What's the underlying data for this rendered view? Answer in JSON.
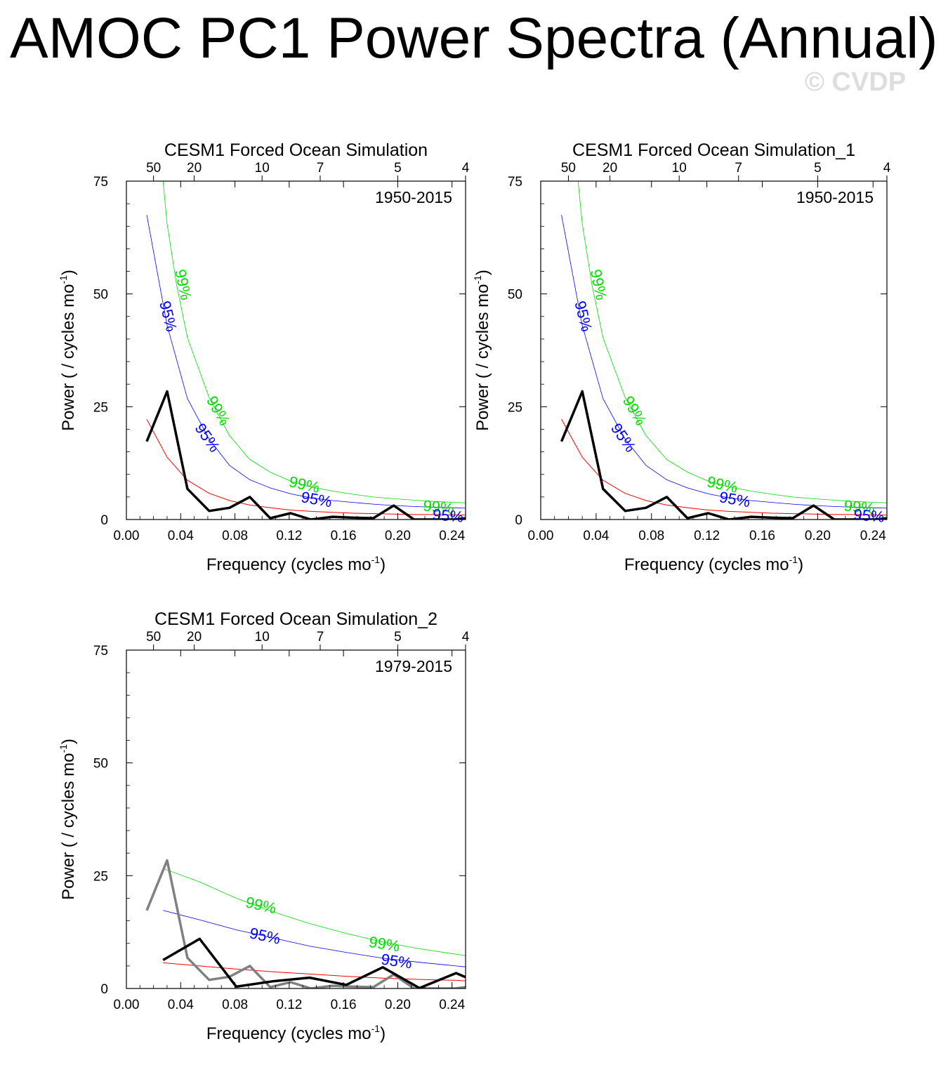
{
  "title": "AMOC PC1 Power Spectra (Annual)",
  "watermark": "© CVDP",
  "colors": {
    "curve": "#000000",
    "reference": "#808080",
    "red_noise": "#ff0000",
    "conf95": "#0000ff",
    "conf99": "#00dd00"
  },
  "chart_data": [
    {
      "type": "line",
      "title": "CESM1 Forced Ocean Simulation",
      "period_label": "1950-2015",
      "xlabel": "Frequency (cycles mo",
      "xlabel_sup": "-1",
      "xlabel_end": ")",
      "ylabel": "Power ( / cycles mo",
      "ylabel_sup": "-1",
      "ylabel_end": ")",
      "xlim": [
        0,
        0.25
      ],
      "ylim": [
        0,
        75
      ],
      "xticks": [
        0.0,
        0.04,
        0.08,
        0.12,
        0.16,
        0.2,
        0.24
      ],
      "xtick_labels": [
        "0.00",
        "0.04",
        "0.08",
        "0.12",
        "0.16",
        "0.20",
        "0.24"
      ],
      "yticks": [
        0,
        25,
        50,
        75
      ],
      "ytick_labels": [
        "0",
        "25",
        "50",
        "75"
      ],
      "top_axis": {
        "periods": [
          50,
          20,
          10,
          7,
          5,
          4
        ],
        "labels": [
          "50",
          "20",
          "10",
          "7",
          "5",
          "4"
        ]
      },
      "series": [
        {
          "role": "red_noise",
          "x": [
            0.015,
            0.03,
            0.045,
            0.061,
            0.076,
            0.091,
            0.106,
            0.121,
            0.136,
            0.152,
            0.167,
            0.182,
            0.197,
            0.212,
            0.227,
            0.242,
            0.25
          ],
          "values": [
            22.2,
            13.8,
            8.7,
            5.8,
            4.2,
            3.2,
            2.6,
            2.1,
            1.8,
            1.6,
            1.4,
            1.3,
            1.2,
            1.1,
            1.1,
            1.0,
            1.0
          ]
        },
        {
          "role": "conf95",
          "label": "95%",
          "x": [
            0.015,
            0.03,
            0.045,
            0.061,
            0.076,
            0.091,
            0.106,
            0.121,
            0.136,
            0.152,
            0.167,
            0.182,
            0.197,
            0.212,
            0.227,
            0.242,
            0.25
          ],
          "values": [
            67.5,
            43.0,
            26.8,
            17.8,
            12.0,
            8.8,
            7.0,
            5.7,
            4.8,
            4.2,
            3.8,
            3.4,
            3.1,
            2.9,
            2.7,
            2.6,
            2.5
          ]
        },
        {
          "role": "conf99",
          "label": "99%",
          "x": [
            0.027,
            0.03,
            0.037,
            0.045,
            0.061,
            0.076,
            0.091,
            0.106,
            0.121,
            0.136,
            0.152,
            0.167,
            0.182,
            0.197,
            0.212,
            0.227,
            0.242,
            0.25
          ],
          "values": [
            75,
            65.5,
            52.0,
            40.3,
            27.0,
            18.6,
            13.3,
            10.5,
            8.5,
            7.2,
            6.3,
            5.6,
            5.0,
            4.6,
            4.3,
            4.0,
            3.8,
            3.7
          ]
        },
        {
          "role": "curve",
          "x": [
            0.015,
            0.03,
            0.045,
            0.061,
            0.076,
            0.091,
            0.106,
            0.121,
            0.136,
            0.152,
            0.167,
            0.182,
            0.197,
            0.212,
            0.227,
            0.242,
            0.25
          ],
          "values": [
            17.3,
            28.4,
            6.8,
            1.9,
            2.6,
            5.0,
            0.3,
            1.4,
            0.0,
            0.6,
            0.4,
            0.3,
            3.1,
            0.0,
            0.0,
            0.0,
            0.3
          ]
        }
      ],
      "confidence_labels": [
        {
          "text": "99%",
          "role": "conf99",
          "x": 0.041,
          "y": 52,
          "angle": 78
        },
        {
          "text": "95%",
          "role": "conf95",
          "x": 0.03,
          "y": 45,
          "angle": 76
        },
        {
          "text": "99%",
          "role": "conf99",
          "x": 0.067,
          "y": 24,
          "angle": 60
        },
        {
          "text": "95%",
          "role": "conf95",
          "x": 0.059,
          "y": 18,
          "angle": 55
        },
        {
          "text": "99%",
          "role": "conf99",
          "x": 0.131,
          "y": 7.5,
          "angle": 12
        },
        {
          "text": "95%",
          "role": "conf95",
          "x": 0.14,
          "y": 4.2,
          "angle": 10
        },
        {
          "text": "99%",
          "role": "conf99",
          "x": 0.23,
          "y": 2.5,
          "angle": 6
        },
        {
          "text": "95%",
          "role": "conf95",
          "x": 0.237,
          "y": 0.6,
          "angle": 5
        }
      ]
    },
    {
      "type": "line",
      "title": "CESM1 Forced Ocean Simulation_1",
      "period_label": "1950-2015",
      "xlabel": "Frequency (cycles mo",
      "xlabel_sup": "-1",
      "xlabel_end": ")",
      "ylabel": "Power ( / cycles mo",
      "ylabel_sup": "-1",
      "ylabel_end": ")",
      "xlim": [
        0,
        0.25
      ],
      "ylim": [
        0,
        75
      ],
      "xticks": [
        0.0,
        0.04,
        0.08,
        0.12,
        0.16,
        0.2,
        0.24
      ],
      "xtick_labels": [
        "0.00",
        "0.04",
        "0.08",
        "0.12",
        "0.16",
        "0.20",
        "0.24"
      ],
      "yticks": [
        0,
        25,
        50,
        75
      ],
      "ytick_labels": [
        "0",
        "25",
        "50",
        "75"
      ],
      "top_axis": {
        "periods": [
          50,
          20,
          10,
          7,
          5,
          4
        ],
        "labels": [
          "50",
          "20",
          "10",
          "7",
          "5",
          "4"
        ]
      },
      "series": [
        {
          "role": "red_noise",
          "x": [
            0.015,
            0.03,
            0.045,
            0.061,
            0.076,
            0.091,
            0.106,
            0.121,
            0.136,
            0.152,
            0.167,
            0.182,
            0.197,
            0.212,
            0.227,
            0.242,
            0.25
          ],
          "values": [
            22.2,
            13.8,
            8.7,
            5.8,
            4.2,
            3.2,
            2.6,
            2.1,
            1.8,
            1.6,
            1.4,
            1.3,
            1.2,
            1.1,
            1.1,
            1.0,
            1.0
          ]
        },
        {
          "role": "conf95",
          "label": "95%",
          "x": [
            0.015,
            0.03,
            0.045,
            0.061,
            0.076,
            0.091,
            0.106,
            0.121,
            0.136,
            0.152,
            0.167,
            0.182,
            0.197,
            0.212,
            0.227,
            0.242,
            0.25
          ],
          "values": [
            67.5,
            43.0,
            26.8,
            17.8,
            12.0,
            8.8,
            7.0,
            5.7,
            4.8,
            4.2,
            3.8,
            3.4,
            3.1,
            2.9,
            2.7,
            2.6,
            2.5
          ]
        },
        {
          "role": "conf99",
          "label": "99%",
          "x": [
            0.027,
            0.03,
            0.037,
            0.045,
            0.061,
            0.076,
            0.091,
            0.106,
            0.121,
            0.136,
            0.152,
            0.167,
            0.182,
            0.197,
            0.212,
            0.227,
            0.242,
            0.25
          ],
          "values": [
            75,
            65.5,
            52.0,
            40.3,
            27.0,
            18.6,
            13.3,
            10.5,
            8.5,
            7.2,
            6.3,
            5.6,
            5.0,
            4.6,
            4.3,
            4.0,
            3.8,
            3.7
          ]
        },
        {
          "role": "curve",
          "x": [
            0.015,
            0.03,
            0.045,
            0.061,
            0.076,
            0.091,
            0.106,
            0.121,
            0.136,
            0.152,
            0.167,
            0.182,
            0.197,
            0.212,
            0.227,
            0.242,
            0.25
          ],
          "values": [
            17.3,
            28.4,
            6.8,
            1.9,
            2.6,
            5.0,
            0.3,
            1.4,
            0.0,
            0.6,
            0.4,
            0.3,
            3.1,
            0.0,
            0.0,
            0.0,
            0.3
          ]
        }
      ],
      "confidence_labels": [
        {
          "text": "99%",
          "role": "conf99",
          "x": 0.041,
          "y": 52,
          "angle": 78
        },
        {
          "text": "95%",
          "role": "conf95",
          "x": 0.03,
          "y": 45,
          "angle": 76
        },
        {
          "text": "99%",
          "role": "conf99",
          "x": 0.067,
          "y": 24,
          "angle": 60
        },
        {
          "text": "95%",
          "role": "conf95",
          "x": 0.059,
          "y": 18,
          "angle": 55
        },
        {
          "text": "99%",
          "role": "conf99",
          "x": 0.131,
          "y": 7.5,
          "angle": 12
        },
        {
          "text": "95%",
          "role": "conf95",
          "x": 0.14,
          "y": 4.2,
          "angle": 10
        },
        {
          "text": "99%",
          "role": "conf99",
          "x": 0.23,
          "y": 2.5,
          "angle": 6
        },
        {
          "text": "95%",
          "role": "conf95",
          "x": 0.237,
          "y": 0.6,
          "angle": 5
        }
      ]
    },
    {
      "type": "line",
      "title": "CESM1 Forced Ocean Simulation_2",
      "period_label": "1979-2015",
      "xlabel": "Frequency (cycles mo",
      "xlabel_sup": "-1",
      "xlabel_end": ")",
      "ylabel": "Power ( / cycles mo",
      "ylabel_sup": "-1",
      "ylabel_end": ")",
      "xlim": [
        0,
        0.25
      ],
      "ylim": [
        0,
        75
      ],
      "xticks": [
        0.0,
        0.04,
        0.08,
        0.12,
        0.16,
        0.2,
        0.24
      ],
      "xtick_labels": [
        "0.00",
        "0.04",
        "0.08",
        "0.12",
        "0.16",
        "0.20",
        "0.24"
      ],
      "yticks": [
        0,
        25,
        50,
        75
      ],
      "ytick_labels": [
        "0",
        "25",
        "50",
        "75"
      ],
      "top_axis": {
        "periods": [
          50,
          20,
          10,
          7,
          5,
          4
        ],
        "labels": [
          "50",
          "20",
          "10",
          "7",
          "5",
          "4"
        ]
      },
      "series": [
        {
          "role": "red_noise",
          "x": [
            0.027,
            0.054,
            0.081,
            0.108,
            0.135,
            0.162,
            0.189,
            0.216,
            0.243,
            0.25
          ],
          "values": [
            5.7,
            5.0,
            4.3,
            3.7,
            3.2,
            2.7,
            2.3,
            2.0,
            1.8,
            1.7
          ]
        },
        {
          "role": "conf95",
          "label": "95%",
          "x": [
            0.027,
            0.054,
            0.081,
            0.108,
            0.135,
            0.162,
            0.189,
            0.216,
            0.243,
            0.25
          ],
          "values": [
            17.3,
            15.2,
            13.0,
            11.2,
            9.4,
            8.0,
            6.7,
            5.8,
            5.0,
            4.8
          ]
        },
        {
          "role": "conf99",
          "label": "99%",
          "x": [
            0.027,
            0.054,
            0.081,
            0.108,
            0.135,
            0.162,
            0.189,
            0.216,
            0.243,
            0.25
          ],
          "values": [
            26.6,
            23.6,
            20.0,
            17.0,
            14.4,
            12.2,
            10.3,
            8.8,
            7.6,
            7.3
          ]
        },
        {
          "role": "reference",
          "x": [
            0.015,
            0.03,
            0.045,
            0.061,
            0.076,
            0.091,
            0.106,
            0.121,
            0.136,
            0.152,
            0.167,
            0.182,
            0.197,
            0.212,
            0.227,
            0.242,
            0.25
          ],
          "values": [
            17.3,
            28.4,
            6.8,
            1.9,
            2.6,
            5.0,
            0.3,
            1.4,
            0.0,
            0.6,
            0.4,
            0.3,
            3.1,
            0.0,
            0.0,
            0.0,
            0.3
          ]
        },
        {
          "role": "curve",
          "x": [
            0.027,
            0.054,
            0.081,
            0.108,
            0.135,
            0.162,
            0.189,
            0.216,
            0.243,
            0.25
          ],
          "values": [
            6.3,
            11.0,
            0.4,
            1.6,
            2.4,
            0.8,
            4.7,
            0.1,
            3.4,
            2.5
          ]
        }
      ],
      "confidence_labels": [
        {
          "text": "99%",
          "role": "conf99",
          "x": 0.099,
          "y": 18.2,
          "angle": 13
        },
        {
          "text": "95%",
          "role": "conf95",
          "x": 0.102,
          "y": 11.4,
          "angle": 12
        },
        {
          "text": "99%",
          "role": "conf99",
          "x": 0.19,
          "y": 9.6,
          "angle": 9
        },
        {
          "text": "95%",
          "role": "conf95",
          "x": 0.199,
          "y": 5.8,
          "angle": 8
        }
      ]
    }
  ]
}
